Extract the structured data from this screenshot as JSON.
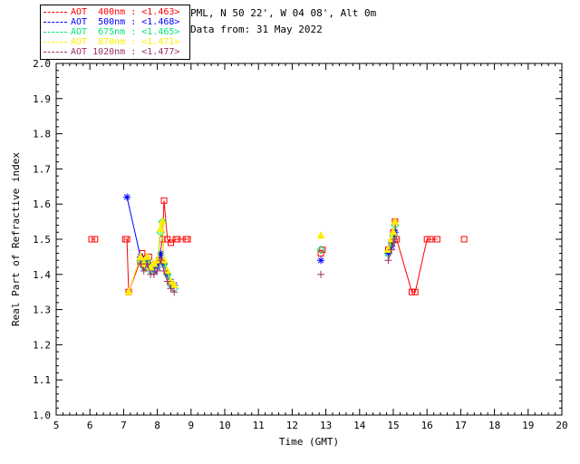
{
  "header": {
    "line1": "PML, N 50 22', W 04 08', Alt 0m",
    "line2": "Data from: 31 May 2022"
  },
  "chart_data": {
    "type": "line",
    "title": "",
    "xlabel": "Time (GMT)",
    "ylabel": "Real Part of Refractive index",
    "xlim": [
      5,
      20
    ],
    "ylim": [
      1.0,
      2.0
    ],
    "xtick_step": 1,
    "ytick_step": 0.1,
    "grid": false,
    "legend_position": "top-left",
    "gap_break_hours": 0.6,
    "series": [
      {
        "label": "AOT  400nm : <1.463>",
        "wavelength": "400nm",
        "value": "<1.463>",
        "color": "#ff0000",
        "marker": "square",
        "points": [
          [
            6.05,
            1.5
          ],
          [
            6.15,
            1.5
          ],
          [
            7.05,
            1.5
          ],
          [
            7.1,
            1.5
          ],
          [
            7.15,
            1.35
          ],
          [
            7.5,
            1.44
          ],
          [
            7.55,
            1.46
          ],
          [
            7.65,
            1.42
          ],
          [
            7.75,
            1.45
          ],
          [
            7.85,
            1.42
          ],
          [
            7.95,
            1.43
          ],
          [
            8.05,
            1.44
          ],
          [
            8.15,
            1.5
          ],
          [
            8.2,
            1.61
          ],
          [
            8.3,
            1.5
          ],
          [
            8.4,
            1.49
          ],
          [
            8.55,
            1.5
          ],
          [
            8.6,
            1.5
          ],
          [
            8.85,
            1.5
          ],
          [
            8.9,
            1.5
          ],
          [
            12.85,
            1.46
          ],
          [
            12.9,
            1.47
          ],
          [
            14.85,
            1.47
          ],
          [
            14.95,
            1.49
          ],
          [
            15.0,
            1.52
          ],
          [
            15.05,
            1.55
          ],
          [
            15.1,
            1.5
          ],
          [
            15.55,
            1.35
          ],
          [
            15.65,
            1.35
          ],
          [
            16.0,
            1.5
          ],
          [
            16.1,
            1.5
          ],
          [
            16.3,
            1.5
          ],
          [
            17.1,
            1.5
          ]
        ]
      },
      {
        "label": "AOT  500nm : <1.468>",
        "wavelength": "500nm",
        "value": "<1.468>",
        "color": "#0000ff",
        "marker": "asterisk",
        "points": [
          [
            7.1,
            1.62
          ],
          [
            7.5,
            1.45
          ],
          [
            7.6,
            1.43
          ],
          [
            7.7,
            1.44
          ],
          [
            7.8,
            1.42
          ],
          [
            7.9,
            1.41
          ],
          [
            8.0,
            1.42
          ],
          [
            8.1,
            1.46
          ],
          [
            8.2,
            1.43
          ],
          [
            8.3,
            1.4
          ],
          [
            8.4,
            1.38
          ],
          [
            8.5,
            1.37
          ],
          [
            12.85,
            1.44
          ],
          [
            14.85,
            1.46
          ],
          [
            14.95,
            1.48
          ],
          [
            15.0,
            1.5
          ],
          [
            15.05,
            1.52
          ]
        ]
      },
      {
        "label": "AOT  675nm : <1.465>",
        "wavelength": "675nm",
        "value": "<1.465>",
        "color": "#00e673",
        "marker": "diamond",
        "points": [
          [
            7.5,
            1.44
          ],
          [
            7.6,
            1.42
          ],
          [
            7.7,
            1.44
          ],
          [
            7.8,
            1.41
          ],
          [
            7.9,
            1.42
          ],
          [
            8.0,
            1.43
          ],
          [
            8.1,
            1.52
          ],
          [
            8.15,
            1.55
          ],
          [
            8.2,
            1.43
          ],
          [
            8.3,
            1.4
          ],
          [
            8.4,
            1.37
          ],
          [
            8.5,
            1.36
          ],
          [
            12.85,
            1.47
          ],
          [
            14.85,
            1.46
          ],
          [
            14.95,
            1.49
          ],
          [
            15.0,
            1.51
          ],
          [
            15.05,
            1.54
          ]
        ]
      },
      {
        "label": "AOT  870nm : <1.471>",
        "wavelength": "870nm",
        "value": "<1.471>",
        "color": "#ffee00",
        "marker": "triangle",
        "points": [
          [
            7.15,
            1.35
          ],
          [
            7.5,
            1.45
          ],
          [
            7.6,
            1.43
          ],
          [
            7.7,
            1.45
          ],
          [
            7.8,
            1.42
          ],
          [
            7.9,
            1.43
          ],
          [
            8.0,
            1.44
          ],
          [
            8.1,
            1.53
          ],
          [
            8.15,
            1.55
          ],
          [
            8.2,
            1.44
          ],
          [
            8.3,
            1.41
          ],
          [
            8.4,
            1.38
          ],
          [
            8.5,
            1.37
          ],
          [
            12.85,
            1.51
          ],
          [
            14.85,
            1.47
          ],
          [
            14.95,
            1.5
          ],
          [
            15.0,
            1.52
          ],
          [
            15.05,
            1.55
          ]
        ]
      },
      {
        "label": "AOT 1020nm : <1.477>",
        "wavelength": "1020nm",
        "value": "<1.477>",
        "color": "#993366",
        "marker": "plus",
        "points": [
          [
            7.5,
            1.43
          ],
          [
            7.6,
            1.41
          ],
          [
            7.7,
            1.43
          ],
          [
            7.8,
            1.4
          ],
          [
            7.9,
            1.4
          ],
          [
            8.0,
            1.41
          ],
          [
            8.1,
            1.44
          ],
          [
            8.2,
            1.41
          ],
          [
            8.3,
            1.38
          ],
          [
            8.4,
            1.36
          ],
          [
            8.5,
            1.35
          ],
          [
            12.85,
            1.4
          ],
          [
            14.85,
            1.44
          ],
          [
            14.95,
            1.47
          ],
          [
            15.0,
            1.49
          ],
          [
            15.05,
            1.5
          ]
        ]
      }
    ]
  }
}
